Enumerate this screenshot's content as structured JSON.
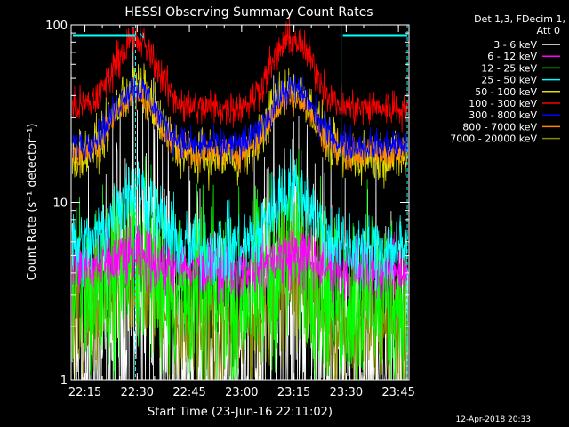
{
  "title": "HESSI Observing Summary Count Rates",
  "footer_date": "12-Apr-2018 20:33",
  "legend_header": [
    "Det 1,3, FDecim 1,",
    "Att 0"
  ],
  "annotation_n": "N",
  "chart_data": {
    "type": "line",
    "title": "HESSI Observing Summary Count Rates",
    "xlabel": "Start Time (23-Jun-16 22:11:02)",
    "ylabel": "Count Rate (s⁻¹ detector⁻¹)",
    "y_scale": "log",
    "ylim": [
      1,
      100
    ],
    "xlim_minutes_after_start": [
      0,
      97
    ],
    "x_ticks": [
      {
        "label": "22:15",
        "minutes": 3.97
      },
      {
        "label": "22:30",
        "minutes": 18.97
      },
      {
        "label": "22:45",
        "minutes": 33.97
      },
      {
        "label": "23:00",
        "minutes": 48.97
      },
      {
        "label": "23:15",
        "minutes": 63.97
      },
      {
        "label": "23:30",
        "minutes": 78.97
      },
      {
        "label": "23:45",
        "minutes": 93.97
      }
    ],
    "y_ticks": [
      {
        "label": "1",
        "value": 1
      },
      {
        "label": "10",
        "value": 10
      },
      {
        "label": "100",
        "value": 100
      }
    ],
    "legend_position": "top-right outside",
    "series": [
      {
        "name": "3 - 6 keV",
        "color": "#ffffff",
        "base": 1.0,
        "peak": 4.0,
        "noise": 0.9
      },
      {
        "name": "6 - 12 keV",
        "color": "#ff00ff",
        "base": 4.3,
        "peak": 5.0,
        "noise": 0.15
      },
      {
        "name": "12 - 25 keV",
        "color": "#00ff00",
        "base": 3.0,
        "peak": 5.0,
        "noise": 0.45
      },
      {
        "name": "25 - 50 keV",
        "color": "#00ffff",
        "base": 5.5,
        "peak": 12.0,
        "noise": 0.18
      },
      {
        "name": "50 - 100 keV",
        "color": "#dddd00",
        "base": 18.0,
        "peak": 45.0,
        "noise": 0.12
      },
      {
        "name": "100 - 300 keV",
        "color": "#ff0000",
        "base": 34.0,
        "peak": 82.0,
        "noise": 0.09
      },
      {
        "name": "300 - 800 keV",
        "color": "#0000ff",
        "base": 21.0,
        "peak": 44.0,
        "noise": 0.08
      },
      {
        "name": "800 - 7000 keV",
        "color": "#ff8800",
        "base": 19.0,
        "peak": 40.0,
        "noise": 0.08
      },
      {
        "name": "7000 - 20000 keV",
        "color": "#888800",
        "base": 2.0,
        "peak": 4.0,
        "noise": 0.35
      }
    ],
    "peaks_minutes": [
      18.5,
      63.5
    ],
    "saa_intervals_minutes": [
      [
        0,
        18.5
      ],
      [
        77.5,
        96.5
      ]
    ],
    "night_markers_minutes": [
      18.5,
      77.5,
      96.5
    ]
  }
}
